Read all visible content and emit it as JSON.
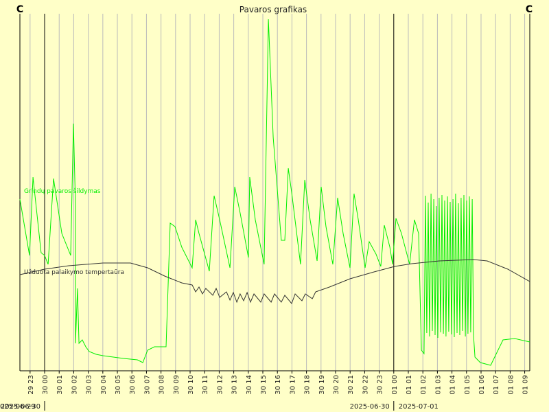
{
  "chart_data": {
    "type": "line",
    "title": "Pavaros grafikas",
    "corner_left": "C",
    "corner_right": "C",
    "xlim": [
      -1.7,
      33.35
    ],
    "ylim": [
      0,
      520
    ],
    "xticks": [
      {
        "value": -1,
        "label": "29 23"
      },
      {
        "value": 0,
        "label": "30 00"
      },
      {
        "value": 1,
        "label": "30 01"
      },
      {
        "value": 2,
        "label": "30 02"
      },
      {
        "value": 3,
        "label": "30 03"
      },
      {
        "value": 4,
        "label": "30 04"
      },
      {
        "value": 5,
        "label": "30 05"
      },
      {
        "value": 6,
        "label": "30 06"
      },
      {
        "value": 7,
        "label": "30 07"
      },
      {
        "value": 8,
        "label": "30 08"
      },
      {
        "value": 9,
        "label": "30 09"
      },
      {
        "value": 10,
        "label": "30 10"
      },
      {
        "value": 11,
        "label": "30 11"
      },
      {
        "value": 12,
        "label": "30 12"
      },
      {
        "value": 13,
        "label": "30 13"
      },
      {
        "value": 14,
        "label": "30 14"
      },
      {
        "value": 15,
        "label": "30 15"
      },
      {
        "value": 16,
        "label": "30 16"
      },
      {
        "value": 17,
        "label": "30 17"
      },
      {
        "value": 18,
        "label": "30 18"
      },
      {
        "value": 19,
        "label": "30 19"
      },
      {
        "value": 20,
        "label": "30 20"
      },
      {
        "value": 21,
        "label": "30 21"
      },
      {
        "value": 22,
        "label": "30 22"
      },
      {
        "value": 23,
        "label": "30 23"
      },
      {
        "value": 24,
        "label": "01 00"
      },
      {
        "value": 25,
        "label": "01 01"
      },
      {
        "value": 26,
        "label": "01 02"
      },
      {
        "value": 27,
        "label": "01 03"
      },
      {
        "value": 28,
        "label": "01 04"
      },
      {
        "value": 29,
        "label": "01 05"
      },
      {
        "value": 30,
        "label": "01 06"
      },
      {
        "value": 31,
        "label": "01 07"
      },
      {
        "value": 32,
        "label": "01 08"
      },
      {
        "value": 33,
        "label": "01 09"
      }
    ],
    "dates": [
      "025-06-29",
      "2025-06-30",
      "2025-06-30",
      "2025-07-01"
    ],
    "series": [
      {
        "name": "Grindų pavaros  šildymas",
        "color": "#00ee00",
        "x": [
          -1.7,
          -1.04,
          -0.8,
          -0.24,
          0,
          0.24,
          0.61,
          1.18,
          1.79,
          1.98,
          2.12,
          2.12,
          2.26,
          2.36,
          2.59,
          2.83,
          3.07,
          3.54,
          4.01,
          4.72,
          5.42,
          6.37,
          6.75,
          7.08,
          7.55,
          8.35,
          8.63,
          8.96,
          9.43,
          10.14,
          10.38,
          10.61,
          11.32,
          11.65,
          12.03,
          12.74,
          13.07,
          13.44,
          14.01,
          14.1,
          14.48,
          15.09,
          15.38,
          15.71,
          16.27,
          16.51,
          16.75,
          16.98,
          17.59,
          17.88,
          18.25,
          18.73,
          19.01,
          19.34,
          19.81,
          20.14,
          20.52,
          20.99,
          21.27,
          21.56,
          22.03,
          22.31,
          22.78,
          23.11,
          23.35,
          23.73,
          23.92,
          24.15,
          24.53,
          25.09,
          25.42,
          25.71,
          25.9,
          26.08,
          26.18,
          26.27,
          26.37,
          26.46,
          26.56,
          26.65,
          26.75,
          26.84,
          26.93,
          27.03,
          27.12,
          27.22,
          27.31,
          27.41,
          27.5,
          27.59,
          27.69,
          27.78,
          27.88,
          27.97,
          28.07,
          28.16,
          28.25,
          28.35,
          28.44,
          28.54,
          28.63,
          28.73,
          28.82,
          28.92,
          29.01,
          29.1,
          29.2,
          29.29,
          29.39,
          29.48,
          29.58,
          29.95,
          30.66,
          31.51,
          32.31,
          33.35
        ],
        "values": [
          250,
          168,
          282,
          172,
          168,
          155,
          280,
          200,
          168,
          360,
          240,
          40,
          120,
          40,
          45,
          35,
          28,
          24,
          22,
          20,
          18,
          16,
          12,
          30,
          35,
          35,
          215,
          210,
          180,
          150,
          220,
          200,
          145,
          255,
          220,
          150,
          268,
          230,
          165,
          282,
          220,
          155,
          512,
          340,
          190,
          190,
          295,
          260,
          155,
          278,
          220,
          160,
          268,
          210,
          155,
          252,
          200,
          150,
          258,
          220,
          150,
          188,
          170,
          152,
          212,
          180,
          155,
          222,
          200,
          155,
          220,
          200,
          30,
          25,
          255,
          55,
          245,
          50,
          258,
          58,
          250,
          52,
          240,
          48,
          252,
          56,
          256,
          54,
          248,
          50,
          254,
          57,
          246,
          53,
          250,
          49,
          258,
          55,
          244,
          52,
          252,
          58,
          256,
          50,
          248,
          54,
          254,
          56,
          250,
          52,
          20,
          12,
          8,
          45,
          47,
          42
        ]
      },
      {
        "name": "Užduota palaikymo tempertaūra",
        "color": "#333333",
        "x": [
          -1.7,
          0,
          1.65,
          4.01,
          5.9,
          7.08,
          8.25,
          9.43,
          10.14,
          10.38,
          10.61,
          10.85,
          11.08,
          11.56,
          11.79,
          12.03,
          12.5,
          12.74,
          12.97,
          13.21,
          13.44,
          13.68,
          13.92,
          14.15,
          14.39,
          14.86,
          15.09,
          15.57,
          15.8,
          16.27,
          16.51,
          16.98,
          17.22,
          17.69,
          17.92,
          18.4,
          18.63,
          19.58,
          20.99,
          22.64,
          24.06,
          25.24,
          27.12,
          29.48,
          30.42,
          31.84,
          33.35
        ],
        "values": [
          140,
          148,
          153,
          157,
          157,
          150,
          138,
          128,
          125,
          115,
          122,
          112,
          120,
          110,
          120,
          107,
          115,
          103,
          114,
          100,
          112,
          102,
          114,
          100,
          112,
          100,
          112,
          100,
          112,
          100,
          110,
          98,
          112,
          102,
          112,
          105,
          115,
          122,
          134,
          144,
          152,
          156,
          160,
          162,
          160,
          148,
          130
        ]
      }
    ]
  }
}
